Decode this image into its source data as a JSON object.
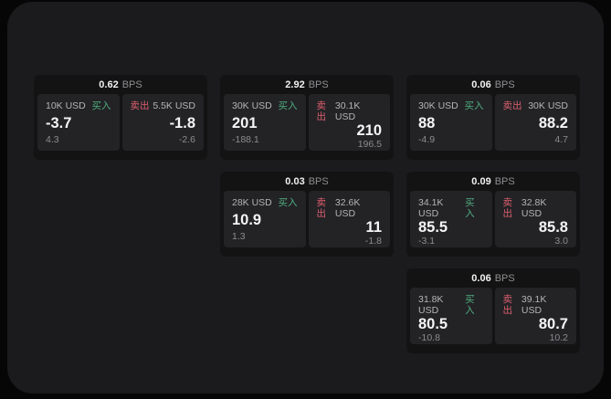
{
  "page": {
    "background": "#060606",
    "panel_background": "#1b1b1d"
  },
  "colors": {
    "buy_green": "#4fae7e",
    "sell_red": "#dd5f6d",
    "card_background": "#131314",
    "tile_background": "#232326"
  },
  "labels": {
    "bps_unit": "BPS",
    "buy": "买入",
    "sell": "卖出"
  },
  "cards": [
    {
      "bps": "0.62",
      "row": 1,
      "col": 1,
      "buy": {
        "amount": "10K USD",
        "value": "-3.7",
        "change": "4.3"
      },
      "sell": {
        "amount": "5.5K USD",
        "value": "-1.8",
        "change": "-2.6"
      }
    },
    {
      "bps": "2.92",
      "row": 1,
      "col": 2,
      "buy": {
        "amount": "30K USD",
        "value": "201",
        "change": "-188.1"
      },
      "sell": {
        "amount": "30.1K USD",
        "value": "210",
        "change": "196.5"
      }
    },
    {
      "bps": "0.06",
      "row": 1,
      "col": 3,
      "buy": {
        "amount": "30K USD",
        "value": "88",
        "change": "-4.9"
      },
      "sell": {
        "amount": "30K USD",
        "value": "88.2",
        "change": "4.7"
      }
    },
    {
      "bps": "0.03",
      "row": 2,
      "col": 2,
      "buy": {
        "amount": "28K USD",
        "value": "10.9",
        "change": "1.3"
      },
      "sell": {
        "amount": "32.6K USD",
        "value": "11",
        "change": "-1.8"
      }
    },
    {
      "bps": "0.09",
      "row": 2,
      "col": 3,
      "buy": {
        "amount": "34.1K USD",
        "value": "85.5",
        "change": "-3.1"
      },
      "sell": {
        "amount": "32.8K USD",
        "value": "85.8",
        "change": "3.0"
      }
    },
    {
      "bps": "0.06",
      "row": 3,
      "col": 3,
      "buy": {
        "amount": "31.8K USD",
        "value": "80.5",
        "change": "-10.8"
      },
      "sell": {
        "amount": "39.1K USD",
        "value": "80.7",
        "change": "10.2"
      }
    }
  ]
}
